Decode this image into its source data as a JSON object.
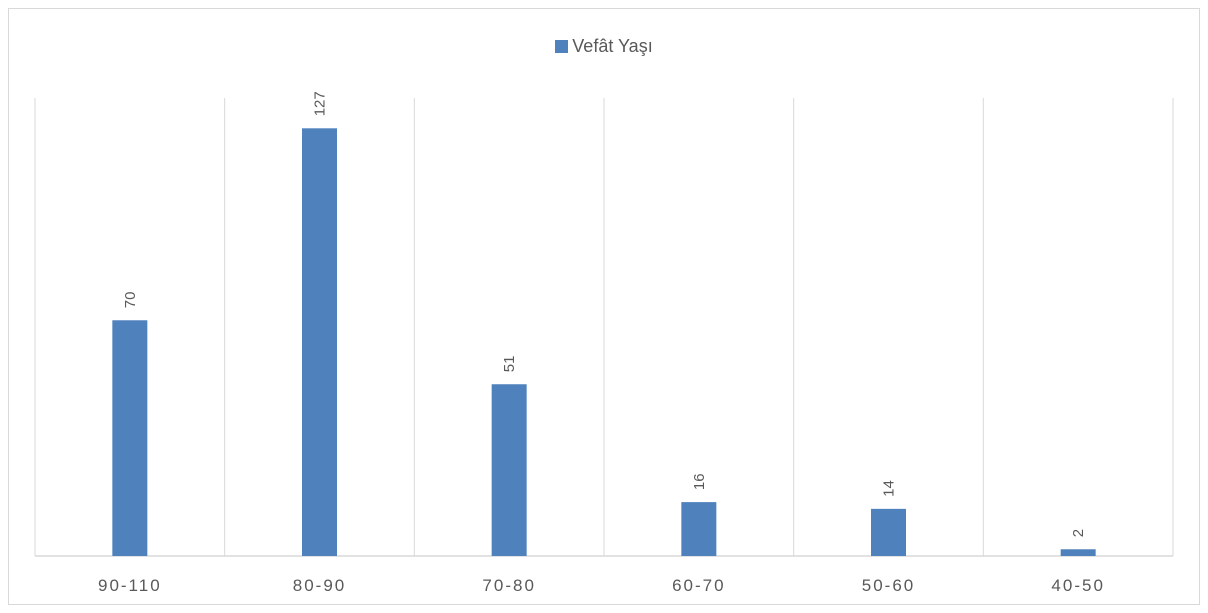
{
  "chart_data": {
    "type": "bar",
    "categories": [
      "90-110",
      "80-90",
      "70-80",
      "60-70",
      "50-60",
      "40-50"
    ],
    "series": [
      {
        "name": "Vefât Yaşı",
        "values": [
          70,
          127,
          51,
          16,
          14,
          2
        ],
        "color": "#4f81bd"
      }
    ],
    "title": "",
    "xlabel": "",
    "ylabel": "",
    "ylim": [
      0,
      140
    ],
    "legend_position": "top-center",
    "grid": "vertical",
    "data_labels": true
  }
}
